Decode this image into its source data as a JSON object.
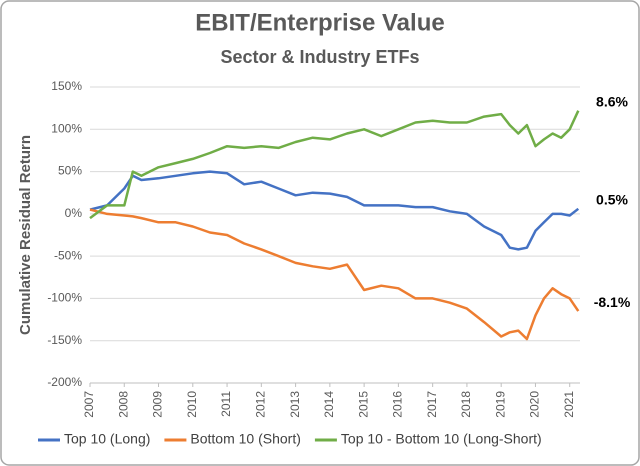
{
  "chart_data": {
    "type": "line",
    "title": "EBIT/Enterprise Value",
    "subtitle": "Sector & Industry ETFs",
    "y_label": "Cumulative Residual Return",
    "x": [
      2007,
      2007.5,
      2008,
      2008.25,
      2008.5,
      2009,
      2009.5,
      2010,
      2010.5,
      2011,
      2011.5,
      2012,
      2012.5,
      2013,
      2013.5,
      2014,
      2014.5,
      2015,
      2015.5,
      2016,
      2016.5,
      2017,
      2017.5,
      2018,
      2018.5,
      2019,
      2019.25,
      2019.5,
      2019.75,
      2020,
      2020.25,
      2020.5,
      2020.75,
      2021,
      2021.25
    ],
    "xlim": [
      2007,
      2021.3
    ],
    "xticks": [
      2007,
      2008,
      2009,
      2010,
      2011,
      2012,
      2013,
      2014,
      2015,
      2016,
      2017,
      2018,
      2019,
      2020,
      2021
    ],
    "ylim": [
      -200,
      150
    ],
    "yticks": [
      {
        "value": -200,
        "label": "-200%"
      },
      {
        "value": -150,
        "label": "-150%"
      },
      {
        "value": -100,
        "label": "-100%"
      },
      {
        "value": -50,
        "label": "-50%"
      },
      {
        "value": 0,
        "label": "0%"
      },
      {
        "value": 50,
        "label": "50%"
      },
      {
        "value": 100,
        "label": "100%"
      },
      {
        "value": 150,
        "label": "150%"
      }
    ],
    "grid": true,
    "legend": "bottom",
    "series": [
      {
        "name": "Top 10 (Long)",
        "color": "#4472c4",
        "end_label": "0.5%",
        "values": [
          5,
          10,
          30,
          45,
          40,
          42,
          45,
          48,
          50,
          48,
          35,
          38,
          30,
          22,
          25,
          24,
          20,
          10,
          10,
          10,
          8,
          8,
          3,
          0,
          -15,
          -25,
          -40,
          -42,
          -40,
          -20,
          -10,
          0,
          0,
          -2,
          6
        ]
      },
      {
        "name": "Bottom 10 (Short)",
        "color": "#ed7d31",
        "end_label": "-8.1%",
        "values": [
          5,
          0,
          -2,
          -3,
          -5,
          -10,
          -10,
          -15,
          -22,
          -25,
          -35,
          -42,
          -50,
          -58,
          -62,
          -65,
          -60,
          -90,
          -85,
          -88,
          -100,
          -100,
          -105,
          -112,
          -128,
          -145,
          -140,
          -138,
          -148,
          -120,
          -100,
          -88,
          -95,
          -100,
          -115
        ]
      },
      {
        "name": "Top 10 - Bottom 10 (Long-Short)",
        "color": "#70ad47",
        "end_label": "8.6%",
        "values": [
          -5,
          10,
          10,
          50,
          45,
          55,
          60,
          65,
          72,
          80,
          78,
          80,
          78,
          85,
          90,
          88,
          95,
          100,
          92,
          100,
          108,
          110,
          108,
          108,
          115,
          118,
          105,
          95,
          105,
          80,
          88,
          95,
          90,
          100,
          122
        ]
      }
    ]
  }
}
